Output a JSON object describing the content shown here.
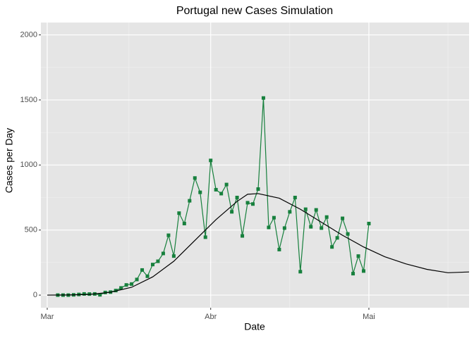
{
  "chart_data": {
    "type": "line",
    "title": "Portugal new Cases Simulation",
    "x_label": "Date",
    "y_label": "Cases per Day",
    "xlim": [
      -1.2,
      80
    ],
    "ylim": [
      -97,
      2095
    ],
    "xticks": [
      {
        "value": 0,
        "label": "Mar"
      },
      {
        "value": 31,
        "label": "Abr"
      },
      {
        "value": 61,
        "label": "Mai"
      }
    ],
    "yticks": [
      0,
      500,
      1000,
      1500,
      2000
    ],
    "grid": true,
    "series": [
      {
        "color": "#17803d",
        "markers": true,
        "x": [
          2,
          3,
          4,
          5,
          6,
          7,
          8,
          9,
          10,
          11,
          12,
          13,
          14,
          15,
          16,
          17,
          18,
          19,
          20,
          21,
          22,
          23,
          24,
          25,
          26,
          27,
          28,
          29,
          30,
          31,
          32,
          33,
          34,
          35,
          36,
          37,
          38,
          39,
          40,
          41,
          42,
          43,
          44,
          45,
          46,
          47,
          48,
          49,
          50,
          51,
          52,
          53,
          54,
          55,
          56,
          57,
          58,
          59,
          60,
          61
        ],
        "values": [
          0,
          0,
          0,
          2,
          5,
          9,
          8,
          9,
          2,
          20,
          23,
          35,
          55,
          78,
          85,
          120,
          193,
          145,
          235,
          260,
          320,
          460,
          300,
          630,
          550,
          725,
          900,
          790,
          445,
          1035,
          810,
          780,
          850,
          640,
          750,
          455,
          710,
          700,
          815,
          1515,
          520,
          595,
          350,
          515,
          640,
          750,
          180,
          660,
          525,
          655,
          515,
          600,
          370,
          440,
          590,
          470,
          165,
          300,
          185,
          550
        ]
      },
      {
        "color": "#000000",
        "markers": false,
        "x": [
          0,
          4,
          8,
          12,
          16,
          20,
          24,
          28,
          32,
          36,
          38,
          40,
          44,
          48,
          52,
          56,
          60,
          64,
          68,
          72,
          76,
          80
        ],
        "values": [
          0,
          1,
          5,
          22,
          60,
          140,
          260,
          420,
          580,
          720,
          775,
          780,
          745,
          660,
          560,
          460,
          370,
          295,
          240,
          198,
          172,
          178
        ]
      }
    ]
  }
}
